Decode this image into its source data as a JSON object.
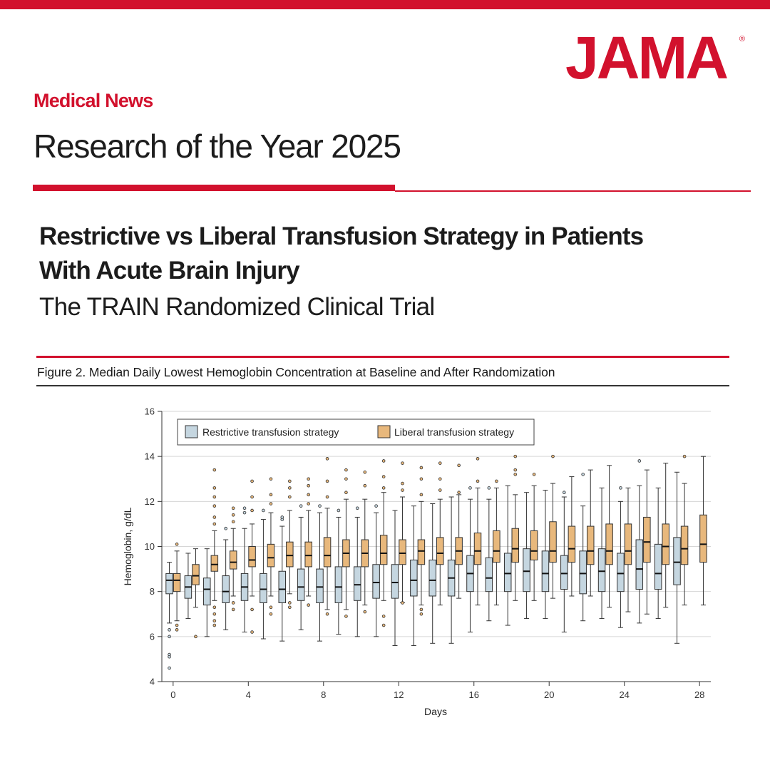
{
  "brand": {
    "name": "JAMA",
    "registered": "®",
    "accent": "#d2112d"
  },
  "header": {
    "section": "Medical News",
    "title": "Research of the Year 2025"
  },
  "article": {
    "title": "Restrictive vs Liberal Transfusion Strategy in Patients With Acute Brain Injury",
    "subtitle": "The TRAIN Randomized Clinical Trial"
  },
  "figure": {
    "caption": "Figure 2. Median Daily Lowest Hemoglobin Concentration at Baseline and After Randomization"
  },
  "chart_data": {
    "type": "boxplot",
    "title": "Median Daily Lowest Hemoglobin Concentration at Baseline and After Randomization",
    "xlabel": "Days",
    "ylabel": "Hemoglobin, g/dL",
    "xlim": [
      -0.6,
      28.6
    ],
    "ylim": [
      4,
      16
    ],
    "xticks": [
      0,
      4,
      8,
      12,
      16,
      20,
      24,
      28
    ],
    "yticks": [
      4,
      6,
      8,
      10,
      12,
      14,
      16
    ],
    "grid": "horizontal",
    "legend_position": "top-left",
    "series": [
      {
        "name": "Restrictive transfusion strategy",
        "color": "#c5d6e0",
        "boxes": [
          {
            "day": 0,
            "whisker_low": 6.6,
            "q1": 7.9,
            "median": 8.5,
            "q3": 8.8,
            "whisker_high": 9.3,
            "outliers": [
              6.3,
              6.0,
              5.2,
              5.1,
              4.6
            ]
          },
          {
            "day": 1,
            "whisker_low": 6.8,
            "q1": 7.7,
            "median": 8.2,
            "q3": 8.7,
            "whisker_high": 9.7,
            "outliers": []
          },
          {
            "day": 2,
            "whisker_low": 6.0,
            "q1": 7.4,
            "median": 8.1,
            "q3": 8.6,
            "whisker_high": 9.9,
            "outliers": []
          },
          {
            "day": 3,
            "whisker_low": 6.3,
            "q1": 7.5,
            "median": 8.0,
            "q3": 8.7,
            "whisker_high": 10.3,
            "outliers": [
              10.8
            ]
          },
          {
            "day": 4,
            "whisker_low": 6.2,
            "q1": 7.6,
            "median": 8.2,
            "q3": 8.8,
            "whisker_high": 10.8,
            "outliers": [
              11.5,
              11.7
            ]
          },
          {
            "day": 5,
            "whisker_low": 5.9,
            "q1": 7.5,
            "median": 8.1,
            "q3": 8.8,
            "whisker_high": 11.2,
            "outliers": [
              11.6
            ]
          },
          {
            "day": 6,
            "whisker_low": 5.8,
            "q1": 7.5,
            "median": 8.1,
            "q3": 8.9,
            "whisker_high": 10.9,
            "outliers": [
              11.2,
              11.3
            ]
          },
          {
            "day": 7,
            "whisker_low": 6.3,
            "q1": 7.6,
            "median": 8.2,
            "q3": 9.0,
            "whisker_high": 11.3,
            "outliers": [
              11.8
            ]
          },
          {
            "day": 8,
            "whisker_low": 5.8,
            "q1": 7.5,
            "median": 8.2,
            "q3": 9.0,
            "whisker_high": 11.5,
            "outliers": [
              11.8
            ]
          },
          {
            "day": 9,
            "whisker_low": 6.1,
            "q1": 7.5,
            "median": 8.2,
            "q3": 9.1,
            "whisker_high": 11.3,
            "outliers": [
              11.6
            ]
          },
          {
            "day": 10,
            "whisker_low": 6.0,
            "q1": 7.6,
            "median": 8.3,
            "q3": 9.1,
            "whisker_high": 11.3,
            "outliers": [
              11.7
            ]
          },
          {
            "day": 11,
            "whisker_low": 6.0,
            "q1": 7.7,
            "median": 8.4,
            "q3": 9.2,
            "whisker_high": 11.5,
            "outliers": [
              11.8
            ]
          },
          {
            "day": 12,
            "whisker_low": 5.6,
            "q1": 7.7,
            "median": 8.4,
            "q3": 9.2,
            "whisker_high": 11.6,
            "outliers": []
          },
          {
            "day": 13,
            "whisker_low": 5.6,
            "q1": 7.8,
            "median": 8.5,
            "q3": 9.4,
            "whisker_high": 11.8,
            "outliers": []
          },
          {
            "day": 14,
            "whisker_low": 5.7,
            "q1": 7.8,
            "median": 8.5,
            "q3": 9.4,
            "whisker_high": 11.9,
            "outliers": []
          },
          {
            "day": 15,
            "whisker_low": 5.7,
            "q1": 7.8,
            "median": 8.6,
            "q3": 9.4,
            "whisker_high": 12.2,
            "outliers": []
          },
          {
            "day": 16,
            "whisker_low": 6.2,
            "q1": 8.0,
            "median": 8.8,
            "q3": 9.6,
            "whisker_high": 12.1,
            "outliers": [
              12.6
            ]
          },
          {
            "day": 17,
            "whisker_low": 6.7,
            "q1": 8.0,
            "median": 8.6,
            "q3": 9.5,
            "whisker_high": 12.1,
            "outliers": [
              12.6
            ]
          },
          {
            "day": 18,
            "whisker_low": 6.5,
            "q1": 8.0,
            "median": 8.8,
            "q3": 9.7,
            "whisker_high": 12.7,
            "outliers": []
          },
          {
            "day": 19,
            "whisker_low": 6.8,
            "q1": 8.0,
            "median": 8.9,
            "q3": 9.9,
            "whisker_high": 12.4,
            "outliers": []
          },
          {
            "day": 20,
            "whisker_low": 6.8,
            "q1": 8.0,
            "median": 8.8,
            "q3": 9.8,
            "whisker_high": 12.5,
            "outliers": []
          },
          {
            "day": 21,
            "whisker_low": 6.2,
            "q1": 8.1,
            "median": 8.8,
            "q3": 9.6,
            "whisker_high": 12.2,
            "outliers": [
              12.4
            ]
          },
          {
            "day": 22,
            "whisker_low": 6.7,
            "q1": 7.9,
            "median": 8.8,
            "q3": 9.8,
            "whisker_high": 11.8,
            "outliers": [
              13.2
            ]
          },
          {
            "day": 23,
            "whisker_low": 6.8,
            "q1": 8.0,
            "median": 8.9,
            "q3": 9.9,
            "whisker_high": 12.6,
            "outliers": []
          },
          {
            "day": 24,
            "whisker_low": 6.4,
            "q1": 8.0,
            "median": 8.8,
            "q3": 9.7,
            "whisker_high": 12.0,
            "outliers": [
              12.6
            ]
          },
          {
            "day": 25,
            "whisker_low": 6.6,
            "q1": 8.1,
            "median": 9.0,
            "q3": 10.3,
            "whisker_high": 12.7,
            "outliers": [
              13.8
            ]
          },
          {
            "day": 26,
            "whisker_low": 6.8,
            "q1": 8.1,
            "median": 8.8,
            "q3": 10.1,
            "whisker_high": 12.6,
            "outliers": []
          },
          {
            "day": 27,
            "whisker_low": 5.7,
            "q1": 8.3,
            "median": 9.3,
            "q3": 10.4,
            "whisker_high": 13.3,
            "outliers": []
          }
        ]
      },
      {
        "name": "Liberal transfusion strategy",
        "color": "#e8b87c",
        "boxes": [
          {
            "day": 0,
            "whisker_low": 6.7,
            "q1": 8.0,
            "median": 8.5,
            "q3": 8.8,
            "whisker_high": 9.8,
            "outliers": [
              10.1,
              6.5,
              6.3
            ]
          },
          {
            "day": 1,
            "whisker_low": 7.3,
            "q1": 8.3,
            "median": 8.7,
            "q3": 9.2,
            "whisker_high": 9.9,
            "outliers": [
              6.0
            ]
          },
          {
            "day": 2,
            "whisker_low": 7.6,
            "q1": 8.9,
            "median": 9.2,
            "q3": 9.6,
            "whisker_high": 10.7,
            "outliers": [
              13.4,
              12.6,
              12.2,
              11.8,
              11.3,
              11.0,
              7.3,
              7.0,
              6.7,
              6.5
            ]
          },
          {
            "day": 3,
            "whisker_low": 7.8,
            "q1": 9.0,
            "median": 9.3,
            "q3": 9.8,
            "whisker_high": 10.8,
            "outliers": [
              11.7,
              11.4,
              11.1,
              7.5,
              7.2
            ]
          },
          {
            "day": 4,
            "whisker_low": 7.8,
            "q1": 9.1,
            "median": 9.4,
            "q3": 10.0,
            "whisker_high": 11.0,
            "outliers": [
              12.9,
              12.2,
              11.6,
              7.2,
              6.2
            ]
          },
          {
            "day": 5,
            "whisker_low": 7.8,
            "q1": 9.1,
            "median": 9.5,
            "q3": 10.1,
            "whisker_high": 11.5,
            "outliers": [
              13.0,
              12.3,
              11.9,
              7.3,
              7.0
            ]
          },
          {
            "day": 6,
            "whisker_low": 7.9,
            "q1": 9.1,
            "median": 9.6,
            "q3": 10.2,
            "whisker_high": 11.6,
            "outliers": [
              12.9,
              12.6,
              12.2,
              7.5,
              7.3
            ]
          },
          {
            "day": 7,
            "whisker_low": 7.8,
            "q1": 9.1,
            "median": 9.6,
            "q3": 10.2,
            "whisker_high": 11.6,
            "outliers": [
              13.0,
              12.7,
              12.3,
              11.9,
              7.4
            ]
          },
          {
            "day": 8,
            "whisker_low": 7.2,
            "q1": 9.1,
            "median": 9.6,
            "q3": 10.4,
            "whisker_high": 11.7,
            "outliers": [
              13.9,
              12.9,
              12.2,
              7.0
            ]
          },
          {
            "day": 9,
            "whisker_low": 7.2,
            "q1": 9.1,
            "median": 9.7,
            "q3": 10.3,
            "whisker_high": 12.1,
            "outliers": [
              13.4,
              13.0,
              12.4,
              6.9
            ]
          },
          {
            "day": 10,
            "whisker_low": 7.4,
            "q1": 9.1,
            "median": 9.7,
            "q3": 10.3,
            "whisker_high": 12.1,
            "outliers": [
              13.3,
              12.7,
              7.1
            ]
          },
          {
            "day": 11,
            "whisker_low": 7.6,
            "q1": 9.2,
            "median": 9.7,
            "q3": 10.5,
            "whisker_high": 12.4,
            "outliers": [
              13.8,
              13.1,
              12.6,
              6.9,
              6.5
            ]
          },
          {
            "day": 12,
            "whisker_low": 7.5,
            "q1": 9.2,
            "median": 9.7,
            "q3": 10.3,
            "whisker_high": 12.2,
            "outliers": [
              13.7,
              12.8,
              12.5,
              7.5
            ]
          },
          {
            "day": 13,
            "whisker_low": 7.4,
            "q1": 9.2,
            "median": 9.8,
            "q3": 10.3,
            "whisker_high": 12.0,
            "outliers": [
              13.5,
              13.0,
              12.3,
              7.2,
              7.0
            ]
          },
          {
            "day": 14,
            "whisker_low": 7.4,
            "q1": 9.2,
            "median": 9.7,
            "q3": 10.4,
            "whisker_high": 12.1,
            "outliers": [
              13.7,
              13.0,
              12.5
            ]
          },
          {
            "day": 15,
            "whisker_low": 7.7,
            "q1": 9.2,
            "median": 9.8,
            "q3": 10.4,
            "whisker_high": 12.3,
            "outliers": [
              13.6,
              12.4
            ]
          },
          {
            "day": 16,
            "whisker_low": 7.4,
            "q1": 9.2,
            "median": 9.8,
            "q3": 10.6,
            "whisker_high": 12.6,
            "outliers": [
              13.9,
              12.9
            ]
          },
          {
            "day": 17,
            "whisker_low": 7.4,
            "q1": 9.3,
            "median": 9.8,
            "q3": 10.7,
            "whisker_high": 12.6,
            "outliers": [
              12.9
            ]
          },
          {
            "day": 18,
            "whisker_low": 7.6,
            "q1": 9.3,
            "median": 9.9,
            "q3": 10.8,
            "whisker_high": 12.3,
            "outliers": [
              14.0,
              13.4,
              13.2
            ]
          },
          {
            "day": 19,
            "whisker_low": 7.6,
            "q1": 9.4,
            "median": 9.8,
            "q3": 10.7,
            "whisker_high": 12.7,
            "outliers": [
              13.2
            ]
          },
          {
            "day": 20,
            "whisker_low": 7.7,
            "q1": 9.3,
            "median": 9.8,
            "q3": 11.1,
            "whisker_high": 12.8,
            "outliers": [
              14.0
            ]
          },
          {
            "day": 21,
            "whisker_low": 7.8,
            "q1": 9.3,
            "median": 9.9,
            "q3": 10.9,
            "whisker_high": 13.1,
            "outliers": []
          },
          {
            "day": 22,
            "whisker_low": 7.8,
            "q1": 9.2,
            "median": 9.8,
            "q3": 10.9,
            "whisker_high": 13.4,
            "outliers": []
          },
          {
            "day": 23,
            "whisker_low": 7.3,
            "q1": 9.2,
            "median": 9.8,
            "q3": 11.0,
            "whisker_high": 13.6,
            "outliers": []
          },
          {
            "day": 24,
            "whisker_low": 7.1,
            "q1": 9.2,
            "median": 9.8,
            "q3": 11.0,
            "whisker_high": 12.6,
            "outliers": []
          },
          {
            "day": 25,
            "whisker_low": 7.0,
            "q1": 9.3,
            "median": 10.2,
            "q3": 11.3,
            "whisker_high": 13.4,
            "outliers": []
          },
          {
            "day": 26,
            "whisker_low": 7.3,
            "q1": 9.2,
            "median": 10.0,
            "q3": 11.0,
            "whisker_high": 13.7,
            "outliers": []
          },
          {
            "day": 27,
            "whisker_low": 7.4,
            "q1": 9.2,
            "median": 9.9,
            "q3": 10.9,
            "whisker_high": 12.8,
            "outliers": [
              14.0
            ]
          },
          {
            "day": 28,
            "whisker_low": 7.4,
            "q1": 9.3,
            "median": 10.1,
            "q3": 11.4,
            "whisker_high": 14.0,
            "outliers": []
          }
        ]
      }
    ]
  }
}
